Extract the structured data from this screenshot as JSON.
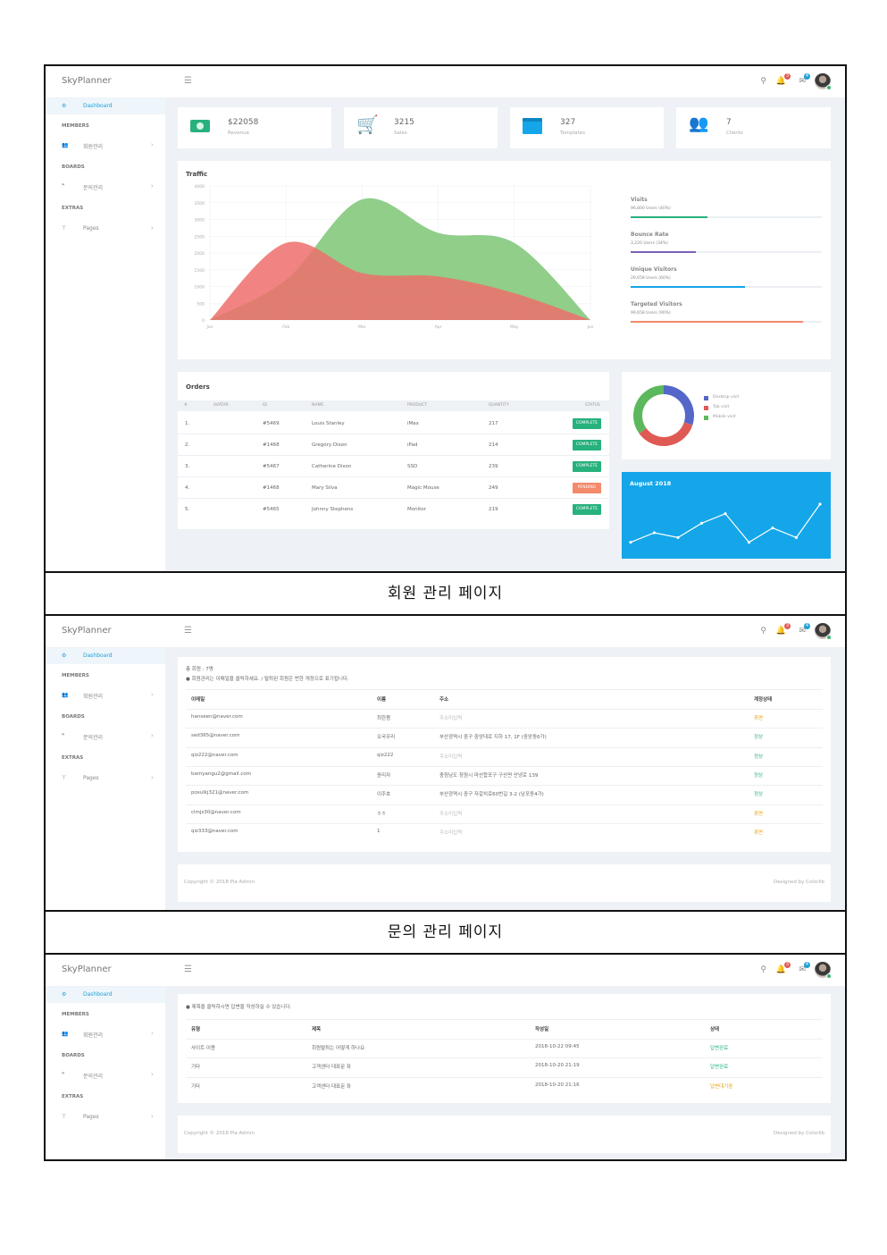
{
  "colors": {
    "accent": "#1e9fd6",
    "green": "#27b17d",
    "orange": "#f28a6b",
    "yellow": "#e8a317",
    "red": "#e05a55",
    "blue": "#5567c9",
    "cyan": "#14a6e9"
  },
  "captions": {
    "member": "회원 관리 페이지",
    "inquiry": "문의 관리 페이지"
  },
  "brand": "SkyPlanner",
  "sidebar": {
    "dashboard": "Dashboard",
    "members": "MEMBERS",
    "member_item": "회원관리",
    "boards": "BOARDS",
    "board_item": "문의관리",
    "extras": "EXTRAS",
    "pages": "Pages"
  },
  "topbar": {
    "icons": [
      "menu-icon",
      "search-icon",
      "bell-icon",
      "mail-icon"
    ],
    "bell_badge": "3",
    "mail_badge": "4"
  },
  "stats": [
    {
      "value": "$22058",
      "label": "Revenue",
      "icon": "money-icon"
    },
    {
      "value": "3215",
      "label": "Sales",
      "icon": "cart-icon"
    },
    {
      "value": "327",
      "label": "Templates",
      "icon": "window-icon"
    },
    {
      "value": "7",
      "label": "Clients",
      "icon": "users-icon"
    }
  ],
  "traffic": {
    "title": "Traffic",
    "metrics": [
      {
        "name": "Visits",
        "detail": "96,800 Users (40%)",
        "percent": 40,
        "color": "#27b17d"
      },
      {
        "name": "Bounce Rate",
        "detail": "3,220 Users (34%)",
        "percent": 34,
        "color": "#7b61b8"
      },
      {
        "name": "Unique Visitors",
        "detail": "29,658 Users (60%)",
        "percent": 60,
        "color": "#14a6e9"
      },
      {
        "name": "Targeted Visitors",
        "detail": "99,658 Users (90%)",
        "percent": 90,
        "color": "#f28a6b"
      }
    ]
  },
  "chart_data": [
    {
      "type": "area",
      "title": "Traffic",
      "categories": [
        "Jan",
        "Feb",
        "Mar",
        "Apr",
        "May",
        "Jun"
      ],
      "yticks": [
        "0",
        "500",
        "1000",
        "1500",
        "2000",
        "2500",
        "3000",
        "3500",
        "4000"
      ],
      "ylim": [
        0,
        4000
      ],
      "series": [
        {
          "values": [
            0,
            1200,
            3600,
            2600,
            2300,
            0
          ],
          "color": "#7cc576"
        },
        {
          "values": [
            0,
            2300,
            1400,
            1300,
            800,
            0
          ],
          "color": "#ef6f6c"
        }
      ]
    },
    {
      "type": "pie",
      "labels": [
        "Desktop visit",
        "Tab visit",
        "Mobile visit"
      ],
      "values": [
        30,
        35,
        35
      ],
      "colors": [
        "#5567c9",
        "#e05a55",
        "#5cb85c"
      ]
    },
    {
      "type": "line",
      "title": "August 2018",
      "values": [
        1,
        3,
        2,
        5,
        7,
        1,
        4,
        2,
        9
      ]
    }
  ],
  "orders": {
    "title": "Orders",
    "headers": [
      "#",
      "AVATAR",
      "ID",
      "NAME",
      "PRODUCT",
      "QUANTITY",
      "STATUS"
    ],
    "rows": [
      {
        "n": "1.",
        "id": "#5469",
        "name": "Louis Stanley",
        "product": "iMax",
        "qty": "217",
        "status": "COMPLETE",
        "status_color": "#27b17d"
      },
      {
        "n": "2.",
        "id": "#1468",
        "name": "Gregory Dixon",
        "product": "iPad",
        "qty": "214",
        "status": "COMPLETE",
        "status_color": "#27b17d"
      },
      {
        "n": "3.",
        "id": "#5467",
        "name": "Catherine Dixon",
        "product": "SSD",
        "qty": "239",
        "status": "COMPLETE",
        "status_color": "#27b17d"
      },
      {
        "n": "4.",
        "id": "#1468",
        "name": "Mary Silva",
        "product": "Magic Mouse",
        "qty": "249",
        "status": "PENDING",
        "status_color": "#f28a6b"
      },
      {
        "n": "5.",
        "id": "#5465",
        "name": "Johnny Stephens",
        "product": "Monitor",
        "qty": "219",
        "status": "COMPLETE",
        "status_color": "#27b17d"
      }
    ]
  },
  "members": {
    "count": "총 회원 : 7명",
    "notice": "● 회원관리는 이메일을 클릭하세요. / 탈퇴된 회원은 번한 게정으로 표기됩니다.",
    "headers": [
      "이메일",
      "이름",
      "주소",
      "계정상태"
    ],
    "rows": [
      {
        "email": "hanseen@naver.com",
        "name": "최한봄",
        "address": "주소미입력",
        "status": "휴면",
        "status_color": "#e8a317"
      },
      {
        "email": "sed365@naver.com",
        "name": "오국우리",
        "address": "부산광역시 중구 중앙대로 지하 17, 1F (중앙동6가)",
        "status": "정상",
        "status_color": "#27b17d"
      },
      {
        "email": "qiz222@naver.com",
        "name": "qiz222",
        "address": "주소미입력",
        "status": "정상",
        "status_color": "#27b17d"
      },
      {
        "email": "bamyangu2@gmail.com",
        "name": "윤리자",
        "address": "충청남도 창원시 마산합포구 구산면 안녕로 139",
        "status": "정상",
        "status_color": "#27b17d"
      },
      {
        "email": "posulkj321@naver.com",
        "name": "이주호",
        "address": "부산광역시 중구 자갈치로60번길 3-2 (남포동4가)",
        "status": "정상",
        "status_color": "#27b17d"
      },
      {
        "email": "clmjs30@naver.com",
        "name": "ㅎㅎ",
        "address": "주소미입력",
        "status": "휴면",
        "status_color": "#e8a317"
      },
      {
        "email": "qiz333@naver.com",
        "name": "1",
        "address": "주소미입력",
        "status": "휴면",
        "status_color": "#e8a317"
      }
    ]
  },
  "inquiries": {
    "notice": "● 제목을 클릭하시면 답변을 작성하실 수 있습니다.",
    "headers": [
      "유형",
      "제목",
      "작성일",
      "상태"
    ],
    "rows": [
      {
        "type": "사이트 이용",
        "title": "회원탈퇴는 어떻게 하나요",
        "date": "2018-10-22 09:45",
        "status": "답변완료",
        "status_color": "#27b17d"
      },
      {
        "type": "기타",
        "title": "고객센터 대표문 좌",
        "date": "2018-10-20 21:19",
        "status": "답변완료",
        "status_color": "#27b17d"
      },
      {
        "type": "기타",
        "title": "고객센터 대표문 좌",
        "date": "2018-10-20 21:16",
        "status": "답변대기중",
        "status_color": "#e8a317"
      }
    ]
  },
  "footer": {
    "copyright": "Copyright © 2018 Pia Admin",
    "designed": "Designed by Colorlib"
  }
}
